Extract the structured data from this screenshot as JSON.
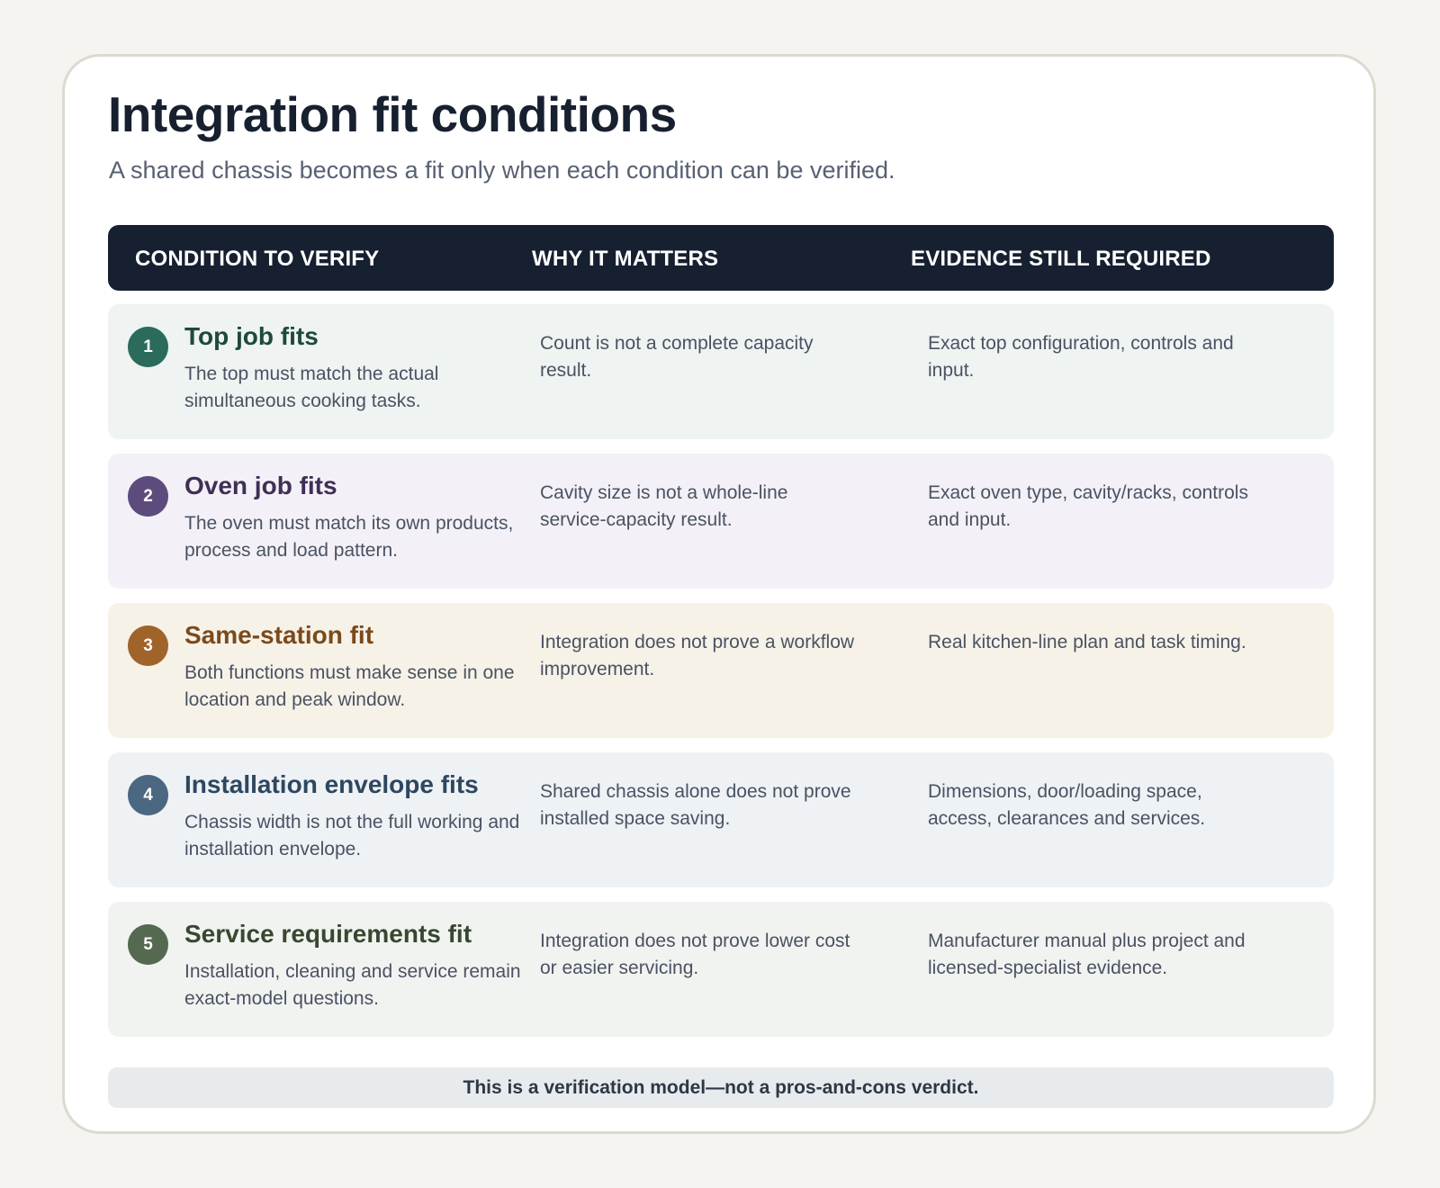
{
  "title": "Integration fit conditions",
  "subtitle": "A shared chassis becomes a fit only when each condition can be verified.",
  "columns": {
    "condition": "CONDITION TO VERIFY",
    "why": "WHY IT MATTERS",
    "evidence": "EVIDENCE STILL REQUIRED"
  },
  "rows": [
    {
      "number": "1",
      "title": "Top job fits",
      "description": "The top must match the actual simultaneous cooking tasks.",
      "why": "Count is not a complete capacity result.",
      "evidence": "Exact top configuration, controls and input.",
      "bg_color": "#eff3f2",
      "accent_color": "#2b6b5c",
      "title_color": "#1d4a3c"
    },
    {
      "number": "2",
      "title": "Oven job fits",
      "description": "The oven must match its own products, process and load pattern.",
      "why": "Cavity size is not a whole-line service-capacity result.",
      "evidence": "Exact oven type, cavity/racks, controls and input.",
      "bg_color": "#f3f1f7",
      "accent_color": "#5d4b7d",
      "title_color": "#3f2f56"
    },
    {
      "number": "3",
      "title": "Same-station fit",
      "description": "Both functions must make sense in one location and peak window.",
      "why": "Integration does not prove a workflow improvement.",
      "evidence": "Real kitchen-line plan and task timing.",
      "bg_color": "#f7f2e8",
      "accent_color": "#a0642a",
      "title_color": "#7a4a1c"
    },
    {
      "number": "4",
      "title": "Installation envelope fits",
      "description": "Chassis width is not the full working and installation envelope.",
      "why": "Shared chassis alone does not prove installed space saving.",
      "evidence": "Dimensions, door/loading space, access, clearances and services.",
      "bg_color": "#eef2f5",
      "accent_color": "#4b6781",
      "title_color": "#2e4760"
    },
    {
      "number": "5",
      "title": "Service requirements fit",
      "description": "Installation, cleaning and service remain exact-model questions.",
      "why": "Integration does not prove lower cost or easier servicing.",
      "evidence": "Manufacturer manual plus project and licensed-specialist evidence.",
      "bg_color": "#f1f3f1",
      "accent_color": "#556950",
      "title_color": "#38482f"
    }
  ],
  "footer": "This is a verification model—not a pros-and-cons verdict."
}
